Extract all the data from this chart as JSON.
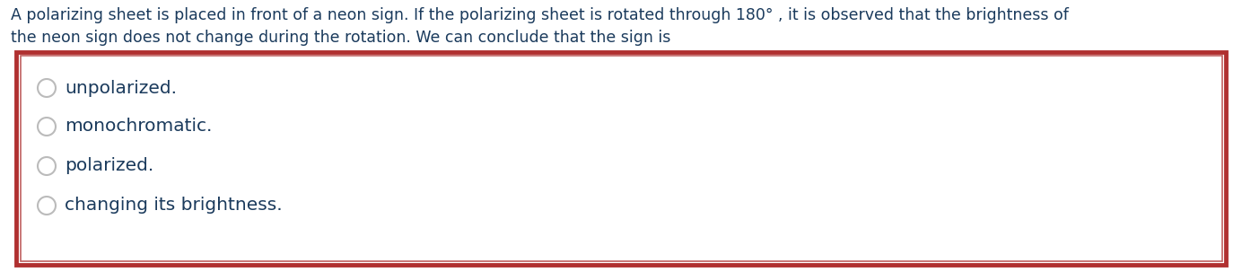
{
  "title_line1": "A polarizing sheet is placed in front of a neon sign. If the polarizing sheet is rotated through 180° , it is observed that the brightness of",
  "title_line2": "the neon sign does not change during the rotation. We can conclude that the sign is",
  "options": [
    "unpolarized.",
    "monochromatic.",
    "polarized.",
    "changing its brightness."
  ],
  "text_color": "#1a3a5c",
  "background_color": "#ffffff",
  "box_border_color_outer": "#b03030",
  "box_border_color_inner": "#c06060",
  "box_fill_color": "#ffffff",
  "circle_edge_color": "#bbbbbb",
  "text_fontsize": 12.5,
  "option_fontsize": 14.5,
  "fig_width": 13.84,
  "fig_height": 3.03,
  "dpi": 100
}
